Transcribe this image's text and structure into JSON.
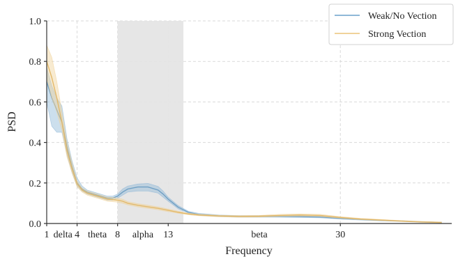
{
  "chart_data": {
    "type": "line",
    "xlabel": "Frequency",
    "ylabel": "PSD",
    "xlim": [
      1,
      41
    ],
    "ylim": [
      0,
      1.0
    ],
    "x_ticks": [
      1,
      4,
      8,
      13,
      30
    ],
    "y_ticks": [
      0.0,
      0.2,
      0.4,
      0.6,
      0.8,
      1.0
    ],
    "y_tick_labels": [
      "0.0",
      "0.2",
      "0.4",
      "0.6",
      "0.8",
      "1.0"
    ],
    "grid": true,
    "legend_position": "top-right",
    "highlight_band": {
      "x_start": 8,
      "x_end": 14.5,
      "color": "#e3e3e3"
    },
    "band_labels": [
      {
        "text": "delta",
        "x": 2.6
      },
      {
        "text": "theta",
        "x": 6.0
      },
      {
        "text": "alpha",
        "x": 10.5
      },
      {
        "text": "beta",
        "x": 22.0
      }
    ],
    "series": [
      {
        "name": "Weak/No Vection",
        "color": "#8fb8d8",
        "x": [
          1,
          1.5,
          2,
          2.5,
          3,
          3.5,
          4,
          4.5,
          5,
          6,
          7,
          7.5,
          8,
          8.5,
          9,
          10,
          11,
          12,
          12.5,
          13,
          14,
          15,
          16,
          18,
          20,
          22,
          24,
          26,
          28,
          30,
          32,
          34,
          36,
          38,
          40
        ],
        "y": [
          0.7,
          0.62,
          0.56,
          0.5,
          0.38,
          0.28,
          0.2,
          0.17,
          0.155,
          0.14,
          0.125,
          0.125,
          0.135,
          0.155,
          0.17,
          0.18,
          0.18,
          0.165,
          0.145,
          0.12,
          0.08,
          0.055,
          0.045,
          0.038,
          0.035,
          0.035,
          0.035,
          0.034,
          0.032,
          0.025,
          0.02,
          0.015,
          0.012,
          0.008,
          0.005
        ],
        "lower": [
          0.6,
          0.48,
          0.45,
          0.45,
          0.34,
          0.25,
          0.185,
          0.16,
          0.145,
          0.13,
          0.115,
          0.115,
          0.125,
          0.14,
          0.155,
          0.16,
          0.16,
          0.15,
          0.13,
          0.11,
          0.072,
          0.05,
          0.04,
          0.034,
          0.031,
          0.031,
          0.031,
          0.03,
          0.028,
          0.022,
          0.017,
          0.013,
          0.01,
          0.006,
          0.003
        ],
        "upper": [
          0.77,
          0.68,
          0.62,
          0.58,
          0.42,
          0.31,
          0.225,
          0.185,
          0.165,
          0.15,
          0.135,
          0.135,
          0.145,
          0.17,
          0.185,
          0.195,
          0.198,
          0.183,
          0.16,
          0.13,
          0.088,
          0.06,
          0.05,
          0.042,
          0.039,
          0.039,
          0.039,
          0.038,
          0.036,
          0.028,
          0.023,
          0.017,
          0.014,
          0.01,
          0.007
        ]
      },
      {
        "name": "Strong Vection",
        "color": "#f0d29a",
        "x": [
          1,
          1.5,
          2,
          2.5,
          3,
          3.5,
          4,
          4.5,
          5,
          6,
          7,
          7.5,
          8,
          8.5,
          9,
          10,
          11,
          12,
          12.5,
          13,
          14,
          15,
          16,
          18,
          20,
          22,
          24,
          26,
          28,
          30,
          32,
          34,
          36,
          38,
          40
        ],
        "y": [
          0.8,
          0.72,
          0.62,
          0.5,
          0.36,
          0.27,
          0.195,
          0.165,
          0.15,
          0.135,
          0.12,
          0.118,
          0.115,
          0.11,
          0.1,
          0.09,
          0.082,
          0.075,
          0.07,
          0.065,
          0.055,
          0.047,
          0.042,
          0.037,
          0.035,
          0.036,
          0.04,
          0.042,
          0.04,
          0.03,
          0.022,
          0.017,
          0.012,
          0.008,
          0.005
        ],
        "lower": [
          0.72,
          0.62,
          0.55,
          0.46,
          0.33,
          0.25,
          0.18,
          0.155,
          0.14,
          0.125,
          0.11,
          0.108,
          0.105,
          0.1,
          0.092,
          0.082,
          0.075,
          0.068,
          0.063,
          0.059,
          0.05,
          0.043,
          0.038,
          0.033,
          0.031,
          0.032,
          0.035,
          0.037,
          0.035,
          0.026,
          0.019,
          0.014,
          0.01,
          0.006,
          0.003
        ],
        "upper": [
          0.88,
          0.82,
          0.7,
          0.55,
          0.4,
          0.3,
          0.21,
          0.175,
          0.16,
          0.145,
          0.13,
          0.128,
          0.125,
          0.12,
          0.108,
          0.098,
          0.09,
          0.082,
          0.077,
          0.071,
          0.06,
          0.051,
          0.046,
          0.041,
          0.039,
          0.04,
          0.045,
          0.047,
          0.045,
          0.034,
          0.025,
          0.02,
          0.014,
          0.01,
          0.007
        ]
      }
    ]
  }
}
